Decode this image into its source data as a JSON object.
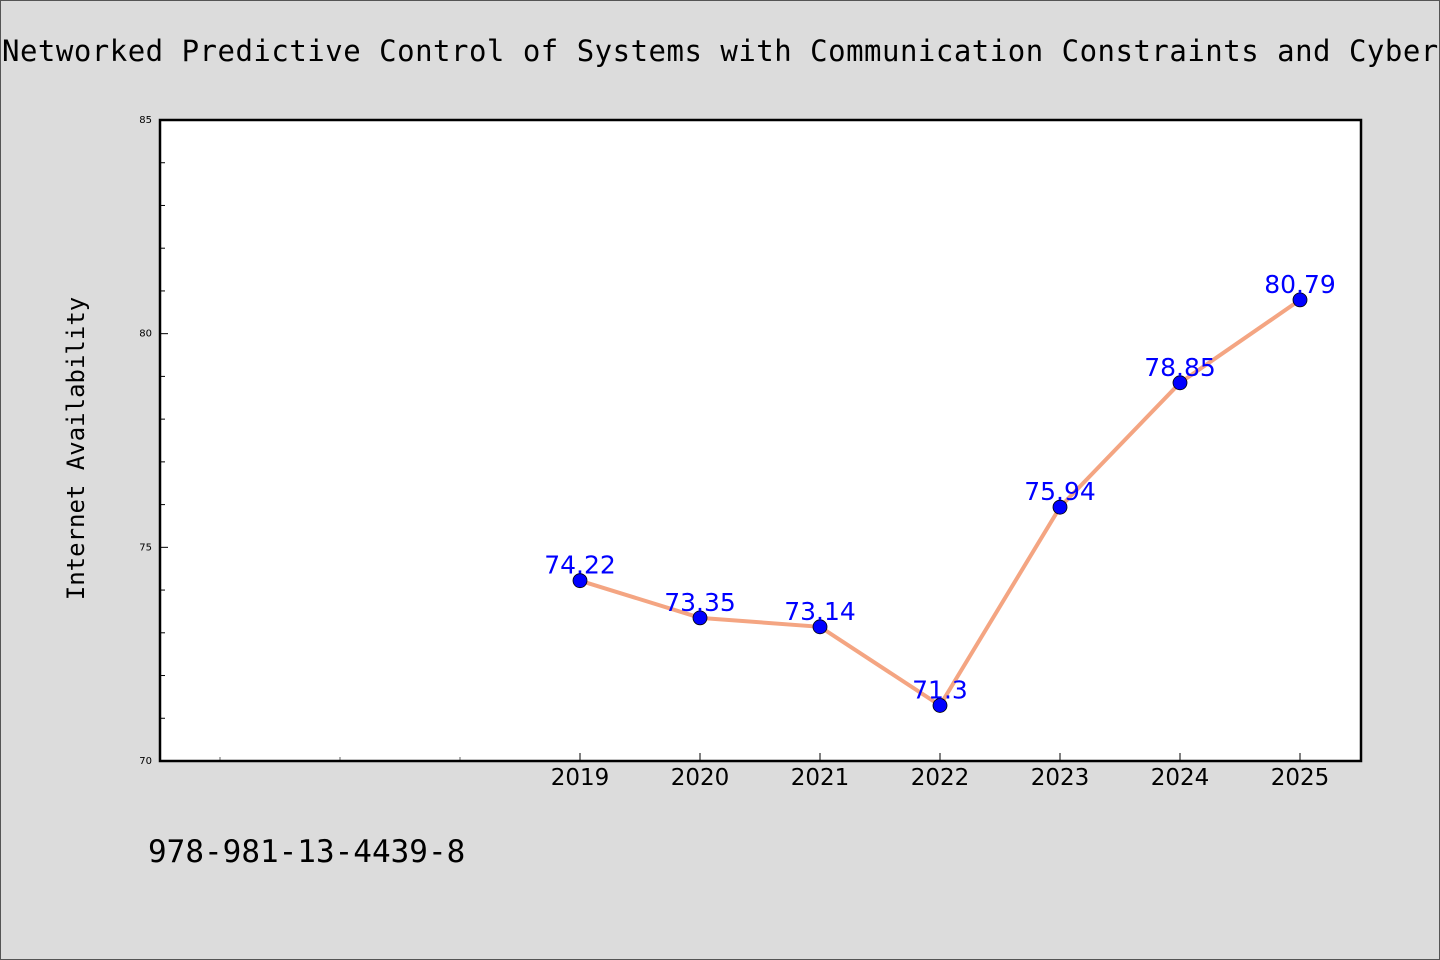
{
  "chart_data": {
    "type": "line",
    "title": "Networked Predictive Control of Systems with Communication Constraints and Cyber",
    "xlabel": "",
    "ylabel": "Internet Availability",
    "categories": [
      "2019",
      "2020",
      "2021",
      "2022",
      "2023",
      "2024",
      "2025"
    ],
    "series": [
      {
        "values": [
          74.22,
          73.35,
          73.14,
          71.3,
          75.94,
          78.85,
          80.79
        ]
      }
    ],
    "data_labels": [
      "74.22",
      "73.35",
      "73.14",
      "71.3",
      "75.94",
      "78.85",
      "80.79"
    ],
    "yticks": [
      "70",
      "75",
      "80",
      "85"
    ],
    "ylim": [
      70,
      85
    ],
    "grid": false,
    "legend": "none",
    "line_color": "#f4a582",
    "marker_color": "#0000ff",
    "label_color": "#0000ff"
  },
  "footer": {
    "isbn": "978-981-13-4439-8"
  }
}
